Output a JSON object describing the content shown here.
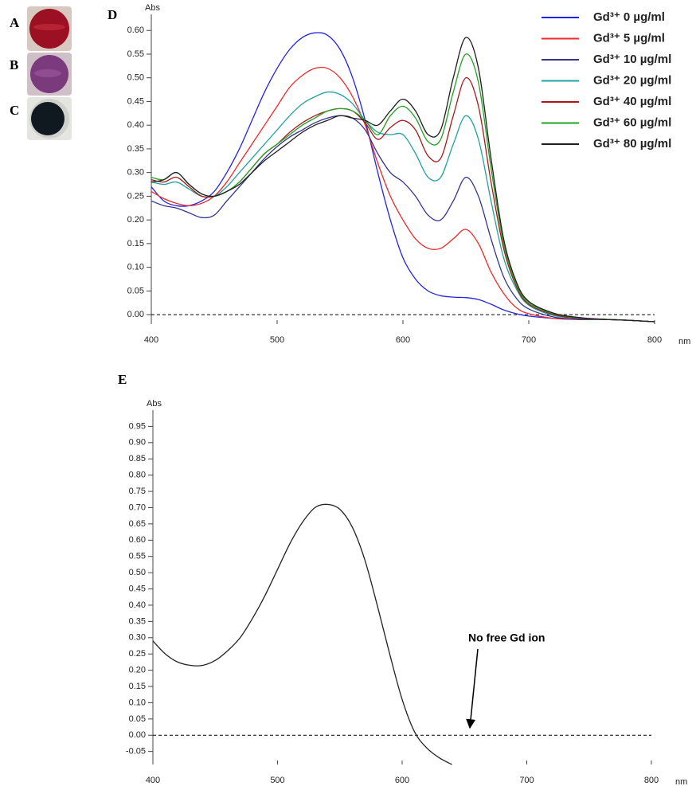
{
  "photo_labels": [
    "A",
    "B",
    "C"
  ],
  "chart_data": [
    {
      "type": "line",
      "panel_label": "D",
      "y_label": "Abs",
      "x_label": "nm",
      "x": [
        400,
        410,
        420,
        430,
        440,
        450,
        460,
        470,
        480,
        490,
        500,
        510,
        520,
        530,
        540,
        550,
        560,
        570,
        580,
        590,
        600,
        610,
        620,
        630,
        640,
        650,
        660,
        670,
        680,
        690,
        700,
        720,
        740,
        760,
        780,
        800
      ],
      "series": [
        {
          "name": "Gd³⁺ 0 µg/ml",
          "color": "#2323e6",
          "values": [
            0.27,
            0.24,
            0.23,
            0.23,
            0.24,
            0.26,
            0.3,
            0.35,
            0.41,
            0.47,
            0.52,
            0.56,
            0.585,
            0.595,
            0.59,
            0.56,
            0.5,
            0.41,
            0.3,
            0.2,
            0.12,
            0.075,
            0.05,
            0.04,
            0.037,
            0.036,
            0.032,
            0.022,
            0.01,
            0.002,
            -0.003,
            -0.008,
            -0.01,
            -0.01,
            -0.012,
            -0.015
          ]
        },
        {
          "name": "Gd³⁺ 5 µg/ml",
          "color": "#ee2a2a",
          "values": [
            0.26,
            0.245,
            0.235,
            0.23,
            0.235,
            0.25,
            0.28,
            0.32,
            0.36,
            0.4,
            0.44,
            0.48,
            0.505,
            0.52,
            0.52,
            0.5,
            0.46,
            0.4,
            0.32,
            0.25,
            0.2,
            0.16,
            0.14,
            0.14,
            0.16,
            0.18,
            0.15,
            0.09,
            0.045,
            0.015,
            0.002,
            -0.008,
            -0.01,
            -0.01,
            -0.012,
            -0.015
          ]
        },
        {
          "name": "Gd³⁺ 10 µg/ml",
          "color": "#34348f",
          "values": [
            0.24,
            0.23,
            0.225,
            0.215,
            0.205,
            0.21,
            0.24,
            0.27,
            0.3,
            0.33,
            0.355,
            0.375,
            0.39,
            0.405,
            0.415,
            0.42,
            0.415,
            0.39,
            0.34,
            0.3,
            0.28,
            0.25,
            0.21,
            0.2,
            0.24,
            0.29,
            0.25,
            0.16,
            0.08,
            0.035,
            0.012,
            -0.005,
            -0.01,
            -0.01,
            -0.012,
            -0.015
          ]
        },
        {
          "name": "Gd³⁺ 20 µg/ml",
          "color": "#23a0a0",
          "values": [
            0.28,
            0.275,
            0.28,
            0.265,
            0.25,
            0.25,
            0.27,
            0.3,
            0.33,
            0.36,
            0.39,
            0.42,
            0.445,
            0.46,
            0.47,
            0.465,
            0.445,
            0.41,
            0.385,
            0.38,
            0.38,
            0.34,
            0.29,
            0.29,
            0.36,
            0.42,
            0.37,
            0.24,
            0.12,
            0.055,
            0.02,
            -0.002,
            -0.008,
            -0.01,
            -0.012,
            -0.015
          ]
        },
        {
          "name": "Gd³⁺ 40 µg/ml",
          "color": "#a51a1a",
          "values": [
            0.285,
            0.28,
            0.29,
            0.27,
            0.25,
            0.25,
            0.26,
            0.28,
            0.31,
            0.34,
            0.36,
            0.385,
            0.405,
            0.42,
            0.43,
            0.435,
            0.43,
            0.405,
            0.37,
            0.395,
            0.41,
            0.39,
            0.335,
            0.33,
            0.42,
            0.5,
            0.44,
            0.28,
            0.14,
            0.06,
            0.022,
            0.0,
            -0.008,
            -0.01,
            -0.012,
            -0.015
          ]
        },
        {
          "name": "Gd³⁺ 60 µg/ml",
          "color": "#22a022",
          "values": [
            0.29,
            0.285,
            0.3,
            0.275,
            0.255,
            0.25,
            0.26,
            0.28,
            0.31,
            0.34,
            0.36,
            0.38,
            0.4,
            0.415,
            0.43,
            0.435,
            0.43,
            0.41,
            0.38,
            0.42,
            0.44,
            0.415,
            0.365,
            0.37,
            0.47,
            0.55,
            0.49,
            0.31,
            0.15,
            0.065,
            0.025,
            0.002,
            -0.007,
            -0.01,
            -0.012,
            -0.015
          ]
        },
        {
          "name": "Gd³⁺ 80 µg/ml",
          "color": "#1e1e1e",
          "values": [
            0.28,
            0.285,
            0.3,
            0.275,
            0.255,
            0.25,
            0.26,
            0.275,
            0.3,
            0.325,
            0.345,
            0.365,
            0.385,
            0.4,
            0.41,
            0.42,
            0.415,
            0.41,
            0.4,
            0.43,
            0.455,
            0.43,
            0.38,
            0.39,
            0.5,
            0.585,
            0.52,
            0.33,
            0.16,
            0.07,
            0.028,
            0.003,
            -0.006,
            -0.01,
            -0.012,
            -0.015
          ]
        }
      ],
      "xlim": [
        400,
        800
      ],
      "ylim": [
        -0.02,
        0.634
      ],
      "xticks": [
        400,
        500,
        600,
        700,
        800
      ],
      "yticks": [
        {
          "value": 0,
          "label": "0.00"
        },
        0.05,
        {
          "value": 0.1,
          "label": "0.10"
        },
        0.15,
        {
          "value": 0.2,
          "label": "0.20"
        },
        0.25,
        {
          "value": 0.3,
          "label": "0.30"
        },
        0.35,
        {
          "value": 0.4,
          "label": "0.40"
        },
        0.45,
        {
          "value": 0.5,
          "label": "0.50"
        },
        0.55,
        {
          "value": 0.6,
          "label": "0.60"
        }
      ],
      "reference_line": 0,
      "legend": "top-right"
    },
    {
      "type": "line",
      "panel_label": "E",
      "y_label": "Abs",
      "x_label": "nm",
      "x": [
        400,
        410,
        420,
        430,
        440,
        450,
        460,
        470,
        480,
        490,
        500,
        510,
        520,
        530,
        540,
        550,
        560,
        570,
        580,
        590,
        600,
        610,
        620,
        630,
        640
      ],
      "series": [
        {
          "color": "#222222",
          "values": [
            0.29,
            0.25,
            0.225,
            0.215,
            0.215,
            0.23,
            0.26,
            0.3,
            0.36,
            0.43,
            0.51,
            0.59,
            0.655,
            0.7,
            0.71,
            0.695,
            0.64,
            0.54,
            0.4,
            0.25,
            0.11,
            0.01,
            -0.04,
            -0.07,
            -0.09
          ]
        }
      ],
      "xlim": [
        400,
        800
      ],
      "ylim": [
        -0.09,
        1.0
      ],
      "xticks": [
        400,
        500,
        600,
        700,
        800
      ],
      "yticks": [
        -0.05,
        {
          "value": 0,
          "label": "0.00"
        },
        0.05,
        {
          "value": 0.1,
          "label": "0.10"
        },
        0.15,
        {
          "value": 0.2,
          "label": "0.20"
        },
        0.25,
        {
          "value": 0.3,
          "label": "0.30"
        },
        0.35,
        {
          "value": 0.4,
          "label": "0.40"
        },
        0.45,
        {
          "value": 0.5,
          "label": "0.50"
        },
        0.55,
        {
          "value": 0.6,
          "label": "0.60"
        },
        0.65,
        {
          "value": 0.7,
          "label": "0.70"
        },
        0.75,
        {
          "value": 0.8,
          "label": "0.80"
        },
        0.85,
        {
          "value": 0.9,
          "label": "0.90"
        },
        0.95
      ],
      "reference_line": 0,
      "annotation": "No free Gd ion"
    }
  ]
}
